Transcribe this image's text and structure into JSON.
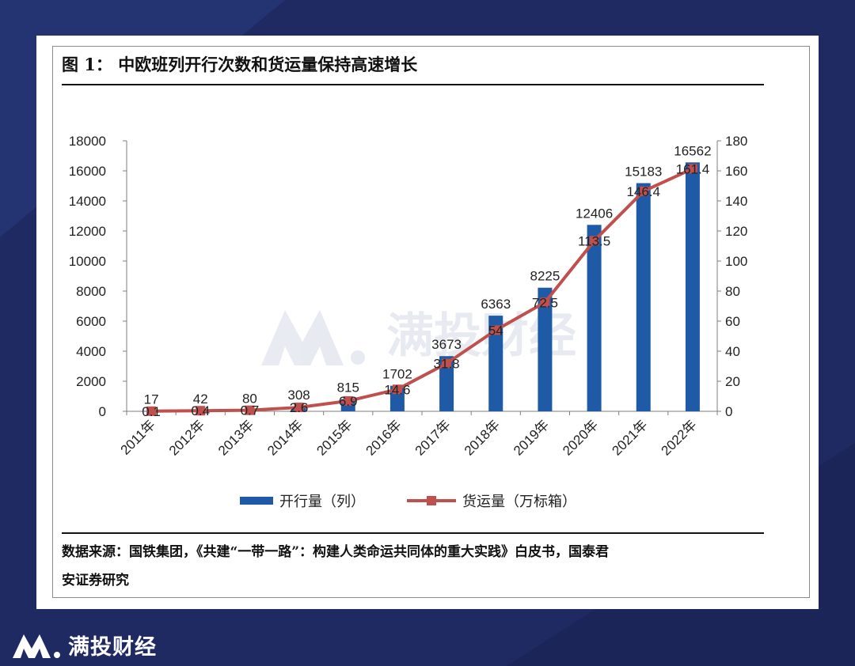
{
  "figure": {
    "title": "图 1： 中欧班列开行次数和货运量保持高速增长",
    "source_line1": "数据来源：国铁集团，《共建“一带一路”：构建人类命运共同体的重大实践》白皮书，国泰君",
    "source_line2": "安证券研究"
  },
  "watermark": {
    "text": "满投财经"
  },
  "brand": {
    "name": "满投财经"
  },
  "colors": {
    "bar": "#1f5aa6",
    "line": "#c0504d",
    "background": "#1f2a63"
  },
  "chart_data": {
    "type": "bar",
    "categories": [
      "2011年",
      "2012年",
      "2013年",
      "2014年",
      "2015年",
      "2016年",
      "2017年",
      "2018年",
      "2019年",
      "2020年",
      "2021年",
      "2022年"
    ],
    "y_left_ticks": [
      "0",
      "2000",
      "4000",
      "6000",
      "8000",
      "10000",
      "12000",
      "14000",
      "16000",
      "18000"
    ],
    "y_right_ticks": [
      "0",
      "20",
      "40",
      "60",
      "80",
      "100",
      "120",
      "140",
      "160",
      "180"
    ],
    "ylim_left": [
      0,
      18000
    ],
    "ylim_right": [
      0,
      180
    ],
    "grid": false,
    "legend_position": "bottom",
    "series": [
      {
        "name": "开行量（列）",
        "type": "bar",
        "axis": "left",
        "values": [
          17,
          42,
          80,
          308,
          815,
          1702,
          3673,
          6363,
          8225,
          12406,
          15183,
          16562
        ],
        "labels": [
          "17",
          "42",
          "80",
          "308",
          "815",
          "1702",
          "3673",
          "6363",
          "8225",
          "12406",
          "15183",
          "16562"
        ]
      },
      {
        "name": "货运量（万标箱）",
        "type": "line",
        "axis": "right",
        "values": [
          0.1,
          0.4,
          0.7,
          2.6,
          6.9,
          14.6,
          31.8,
          54,
          72.5,
          113.5,
          146.4,
          161.4
        ],
        "labels": [
          "0.1",
          "0.4",
          "0.7",
          "2.6",
          "6.9",
          "14.6",
          "31.8",
          "54",
          "72.5",
          "113.5",
          "146.4",
          "161.4"
        ]
      }
    ]
  }
}
